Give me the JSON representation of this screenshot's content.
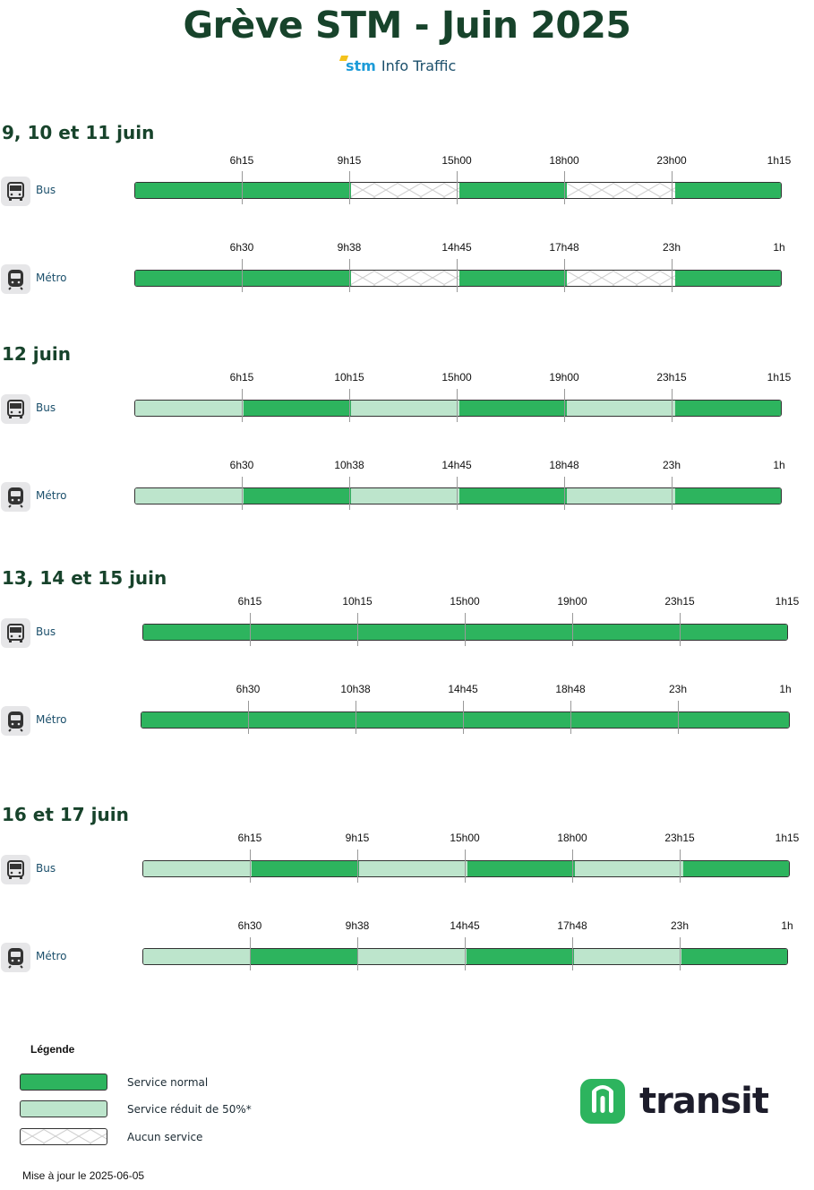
{
  "title": "Grève STM - Juin 2025",
  "subtitle": {
    "logo_text": "stm",
    "text": "Info Traffic"
  },
  "colors": {
    "normal": "#2db45e",
    "reduced": "#bde5cc",
    "none": "#ffffff",
    "title": "#17432b"
  },
  "chart_data": {
    "type": "timeline",
    "categories": [
      "normal",
      "reduced",
      "none"
    ],
    "sections": [
      {
        "title": "9, 10 et 11 juin",
        "rows": [
          {
            "mode": "Bus",
            "icon": "bus-icon",
            "ticks": [
              "6h15",
              "9h15",
              "15h00",
              "18h00",
              "23h00",
              "1h15"
            ],
            "segments": [
              "normal",
              "normal",
              "none",
              "normal",
              "none",
              "normal"
            ]
          },
          {
            "mode": "Métro",
            "icon": "metro-icon",
            "ticks": [
              "6h30",
              "9h38",
              "14h45",
              "17h48",
              "23h",
              "1h"
            ],
            "segments": [
              "normal",
              "normal",
              "none",
              "normal",
              "none",
              "normal"
            ]
          }
        ]
      },
      {
        "title": "12 juin",
        "rows": [
          {
            "mode": "Bus",
            "icon": "bus-icon",
            "ticks": [
              "6h15",
              "10h15",
              "15h00",
              "19h00",
              "23h15",
              "1h15"
            ],
            "segments": [
              "reduced",
              "normal",
              "reduced",
              "normal",
              "reduced",
              "normal"
            ]
          },
          {
            "mode": "Métro",
            "icon": "metro-icon",
            "ticks": [
              "6h30",
              "10h38",
              "14h45",
              "18h48",
              "23h",
              "1h"
            ],
            "segments": [
              "reduced",
              "normal",
              "reduced",
              "normal",
              "reduced",
              "normal"
            ]
          }
        ]
      },
      {
        "title": "13, 14 et 15 juin",
        "rows": [
          {
            "mode": "Bus",
            "icon": "bus-icon",
            "ticks": [
              "6h15",
              "10h15",
              "15h00",
              "19h00",
              "23h15",
              "1h15"
            ],
            "segments": [
              "normal",
              "normal",
              "normal",
              "normal",
              "normal",
              "normal"
            ]
          },
          {
            "mode": "Métro",
            "icon": "metro-icon",
            "ticks": [
              "6h30",
              "10h38",
              "14h45",
              "18h48",
              "23h",
              "1h"
            ],
            "segments": [
              "normal",
              "normal",
              "normal",
              "normal",
              "normal",
              "normal"
            ]
          }
        ]
      },
      {
        "title": "16 et 17 juin",
        "rows": [
          {
            "mode": "Bus",
            "icon": "bus-icon",
            "ticks": [
              "6h15",
              "9h15",
              "15h00",
              "18h00",
              "23h15",
              "1h15"
            ],
            "segments": [
              "reduced",
              "normal",
              "reduced",
              "normal",
              "reduced",
              "normal"
            ]
          },
          {
            "mode": "Métro",
            "icon": "metro-icon",
            "ticks": [
              "6h30",
              "9h38",
              "14h45",
              "17h48",
              "23h",
              "1h"
            ],
            "segments": [
              "reduced",
              "normal",
              "reduced",
              "normal",
              "reduced",
              "normal"
            ]
          }
        ]
      }
    ]
  },
  "legend": {
    "title": "Légende",
    "items": [
      {
        "key": "normal",
        "label": "Service normal"
      },
      {
        "key": "reduced",
        "label": "Service réduit de 50%*"
      },
      {
        "key": "none",
        "label": "Aucun service"
      }
    ]
  },
  "updated": "Mise à jour le 2025-06-05",
  "brand": {
    "name": "transit"
  }
}
